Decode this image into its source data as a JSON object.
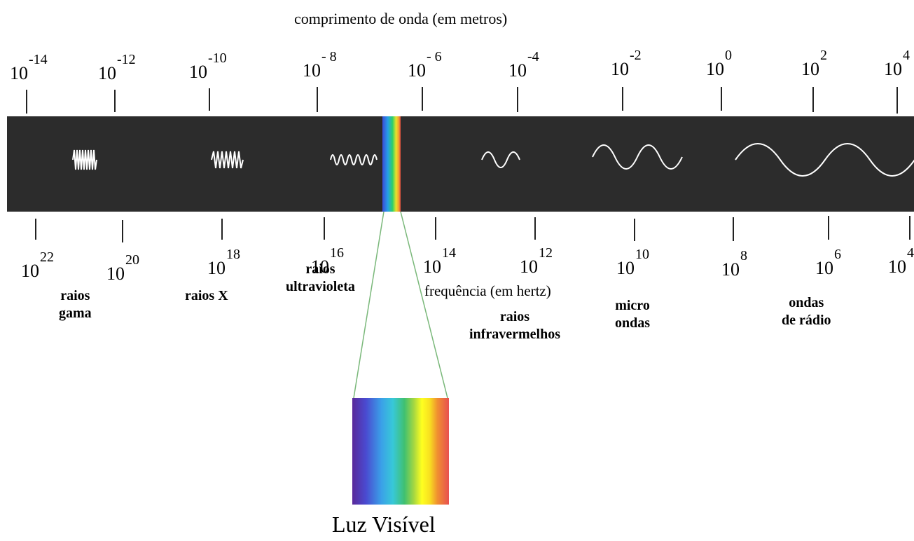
{
  "title": "comprimento de onda (em metros)",
  "frequency_title": "frequência (em hertz)",
  "wavelength_ticks": [
    {
      "base": "10",
      "exp": "-14"
    },
    {
      "base": "10",
      "exp": "-12"
    },
    {
      "base": "10",
      "exp": "-10"
    },
    {
      "base": "10",
      "exp": "- 8"
    },
    {
      "base": "10",
      "exp": "- 6"
    },
    {
      "base": "10",
      "exp": "-4"
    },
    {
      "base": "10",
      "exp": "-2"
    },
    {
      "base": "10",
      "exp": "0"
    },
    {
      "base": "10",
      "exp": "2"
    },
    {
      "base": "10",
      "exp": "4"
    }
  ],
  "frequency_ticks": [
    {
      "base": "10",
      "exp": "22"
    },
    {
      "base": "10",
      "exp": "20"
    },
    {
      "base": "10",
      "exp": "18"
    },
    {
      "base": "10",
      "exp": "16"
    },
    {
      "base": "10",
      "exp": "14"
    },
    {
      "base": "10",
      "exp": "12"
    },
    {
      "base": "10",
      "exp": "10"
    },
    {
      "base": "10",
      "exp": "8"
    },
    {
      "base": "10",
      "exp": "6"
    },
    {
      "base": "10",
      "exp": "4"
    }
  ],
  "regions": {
    "gamma": {
      "line1": "raios",
      "line2": "gama"
    },
    "xray": {
      "line1": "raios X"
    },
    "uv": {
      "line1": "raios",
      "line2": "ultravioleta"
    },
    "ir": {
      "line1": "raios",
      "line2": "infravermelhos"
    },
    "micro": {
      "line1": "micro",
      "line2": "ondas"
    },
    "radio": {
      "line1": "ondas",
      "line2": "de rádio"
    }
  },
  "visible_label": "Luz Visível",
  "colors": {
    "band": "#2c2c2c",
    "wave": "#ffffff"
  }
}
